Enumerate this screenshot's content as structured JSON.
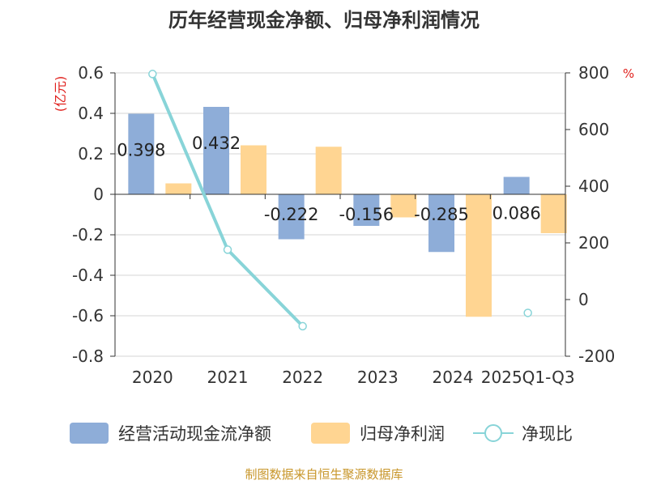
{
  "chart_data": {
    "type": "bar",
    "title": "历年经营现金净额、归母净利润情况",
    "categories": [
      "2020",
      "2021",
      "2022",
      "2023",
      "2024",
      "2025Q1-Q3"
    ],
    "left_axis_unit": "(亿元)",
    "right_axis_unit": "%",
    "left_ylim": [
      -0.8,
      0.6
    ],
    "left_ticks": [
      0.6,
      0.4,
      0.2,
      0,
      -0.2,
      -0.4,
      -0.6,
      -0.8
    ],
    "left_tick_labels": [
      "0.6",
      "0.4",
      "0.2",
      "0",
      "-0.2",
      "-0.4",
      "-0.6",
      "-0.8"
    ],
    "right_ylim": [
      -200,
      800
    ],
    "right_ticks": [
      800,
      600,
      400,
      200,
      0,
      -200
    ],
    "right_tick_labels": [
      "800",
      "600",
      "400",
      "200",
      "0",
      "-200"
    ],
    "series": [
      {
        "name": "经营活动现金流净额",
        "type": "bar",
        "axis": "left",
        "color": "#8eadd8",
        "values": [
          0.398,
          0.432,
          -0.222,
          -0.156,
          -0.285,
          0.086
        ],
        "labels": [
          "0.398",
          "0.432",
          "-0.222",
          "-0.156",
          "-0.285",
          "0.086"
        ]
      },
      {
        "name": "归母净利润",
        "type": "bar",
        "axis": "left",
        "color": "#ffd592",
        "values": [
          0.054,
          0.242,
          0.235,
          -0.114,
          -0.605,
          -0.192
        ]
      },
      {
        "name": "净现比",
        "type": "line",
        "axis": "right",
        "color": "#88d4d8",
        "values": [
          796,
          176,
          -94,
          null,
          null,
          -47
        ]
      }
    ],
    "legend_position": "bottom"
  },
  "source": "制图数据来自恒生聚源数据库"
}
